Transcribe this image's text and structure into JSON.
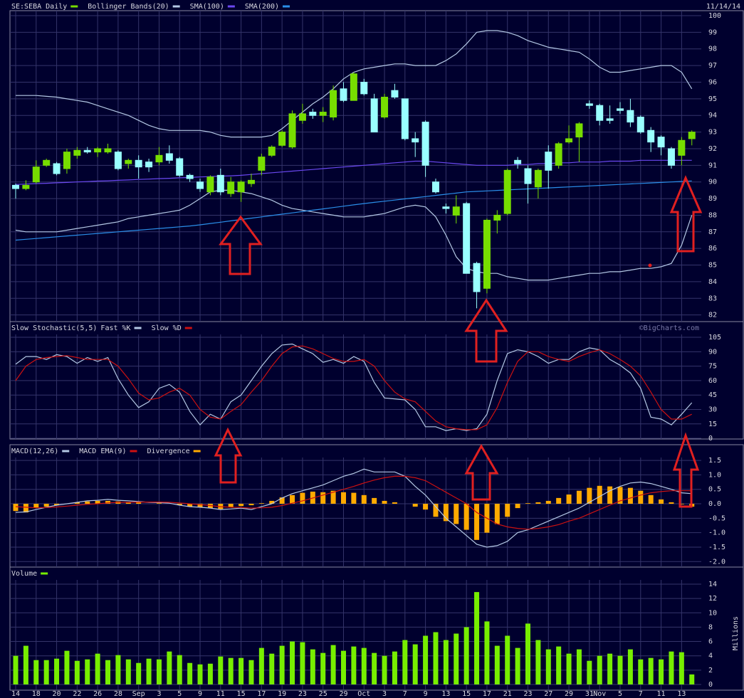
{
  "chart_data": [
    {
      "type": "candlestick",
      "title": "SE:SEBA Daily",
      "date": "11/14/14",
      "up_color": "#77dd00",
      "down_color": "#99ffff",
      "grid": true,
      "ylim": [
        81.6,
        100.3
      ],
      "yticks": [
        82,
        83,
        84,
        85,
        86,
        87,
        88,
        89,
        90,
        91,
        92,
        93,
        94,
        95,
        96,
        97,
        98,
        99,
        100
      ],
      "open": [
        89.8,
        89.6,
        90.0,
        91.0,
        91.1,
        90.8,
        91.6,
        91.9,
        91.8,
        91.8,
        91.8,
        91.1,
        91.3,
        91.2,
        91.2,
        91.7,
        91.4,
        90.4,
        90.0,
        89.4,
        90.4,
        89.3,
        89.4,
        89.9,
        90.7,
        91.6,
        92.2,
        92.1,
        93.7,
        94.2,
        94.0,
        93.9,
        95.6,
        94.9,
        96.0,
        95.0,
        93.9,
        95.5,
        95.0,
        92.6,
        93.6,
        90.0,
        88.5,
        88.0,
        88.7,
        85.1,
        83.6,
        87.7,
        88.1,
        91.3,
        90.8,
        89.7,
        91.8,
        91.0,
        92.4,
        92.7,
        94.7,
        94.6,
        93.8,
        94.4,
        94.3,
        93.9,
        93.1,
        92.7,
        92.0,
        91.6,
        92.6
      ],
      "high": [
        89.9,
        90.1,
        91.3,
        91.4,
        91.2,
        92.0,
        92.1,
        92.1,
        92.1,
        92.3,
        91.9,
        91.4,
        91.6,
        91.4,
        92.1,
        92.2,
        91.5,
        90.5,
        90.2,
        90.4,
        90.8,
        90.3,
        90.1,
        90.5,
        91.7,
        92.2,
        93.1,
        94.3,
        94.7,
        94.4,
        94.5,
        95.8,
        96.0,
        96.6,
        96.2,
        95.3,
        95.3,
        95.9,
        95.0,
        93.0,
        93.7,
        90.2,
        88.7,
        89.2,
        88.8,
        85.2,
        87.8,
        88.3,
        90.8,
        91.5,
        91.0,
        90.8,
        92.2,
        92.4,
        93.4,
        93.6,
        94.9,
        94.7,
        94.6,
        94.8,
        95.0,
        94.0,
        93.3,
        92.8,
        92.1,
        92.7,
        93.1
      ],
      "low": [
        89.0,
        89.5,
        89.9,
        90.9,
        90.4,
        90.5,
        91.4,
        91.7,
        91.5,
        91.7,
        90.7,
        90.8,
        90.2,
        90.6,
        91.0,
        91.1,
        90.3,
        90.0,
        89.4,
        89.2,
        89.2,
        89.1,
        88.8,
        89.7,
        90.4,
        91.5,
        92.1,
        92.0,
        93.5,
        93.8,
        93.6,
        93.7,
        94.8,
        94.9,
        95.2,
        93.0,
        93.8,
        95.0,
        92.5,
        91.5,
        90.3,
        89.3,
        88.1,
        87.5,
        84.5,
        82.4,
        83.3,
        86.9,
        88.0,
        90.8,
        88.7,
        89.0,
        89.6,
        90.8,
        92.3,
        91.2,
        94.4,
        93.4,
        93.5,
        94.1,
        93.3,
        92.9,
        91.8,
        91.6,
        90.8,
        91.0,
        92.2
      ],
      "close": [
        89.6,
        89.8,
        90.9,
        91.3,
        90.5,
        91.8,
        91.9,
        91.8,
        92.0,
        92.0,
        90.8,
        91.3,
        90.9,
        90.9,
        91.6,
        91.3,
        90.4,
        90.2,
        89.6,
        90.3,
        89.4,
        90.0,
        90.0,
        90.1,
        91.5,
        92.1,
        93.0,
        94.1,
        94.1,
        94.0,
        94.2,
        95.5,
        94.9,
        96.5,
        95.3,
        93.0,
        95.1,
        95.1,
        92.6,
        92.4,
        91.0,
        89.4,
        88.4,
        88.5,
        84.5,
        83.4,
        87.7,
        88.0,
        90.7,
        91.1,
        89.9,
        90.7,
        90.7,
        92.3,
        92.6,
        93.5,
        94.6,
        93.7,
        93.7,
        94.3,
        93.6,
        93.0,
        92.4,
        92.1,
        91.0,
        92.5,
        93.0
      ],
      "overlays": [
        {
          "name": "Bollinger Bands(20)",
          "color": "#b4c8e4",
          "upper": [
            95.2,
            95.2,
            95.2,
            95.15,
            95.1,
            95.0,
            94.9,
            94.8,
            94.6,
            94.4,
            94.2,
            94.0,
            93.7,
            93.4,
            93.2,
            93.1,
            93.1,
            93.1,
            93.1,
            93.0,
            92.8,
            92.7,
            92.7,
            92.7,
            92.7,
            92.8,
            93.2,
            93.7,
            94.2,
            94.7,
            95.1,
            95.6,
            96.2,
            96.6,
            96.8,
            96.9,
            97.0,
            97.1,
            97.1,
            97.0,
            97.0,
            97.0,
            97.3,
            97.7,
            98.3,
            99.0,
            99.1,
            99.1,
            99.0,
            98.8,
            98.5,
            98.3,
            98.1,
            98.0,
            97.9,
            97.8,
            97.4,
            96.9,
            96.6,
            96.6,
            96.7,
            96.8,
            96.9,
            97.0,
            97.0,
            96.6,
            95.6
          ],
          "lower": [
            87.1,
            87.0,
            87.0,
            87.0,
            87.0,
            87.1,
            87.2,
            87.3,
            87.4,
            87.5,
            87.6,
            87.8,
            87.9,
            88.0,
            88.1,
            88.2,
            88.3,
            88.6,
            89.0,
            89.4,
            89.5,
            89.5,
            89.4,
            89.3,
            89.1,
            88.9,
            88.6,
            88.4,
            88.3,
            88.2,
            88.1,
            88.0,
            87.9,
            87.9,
            87.9,
            88.0,
            88.1,
            88.3,
            88.5,
            88.6,
            88.5,
            87.9,
            86.8,
            85.5,
            84.8,
            84.6,
            84.5,
            84.5,
            84.3,
            84.2,
            84.1,
            84.1,
            84.1,
            84.2,
            84.3,
            84.4,
            84.5,
            84.5,
            84.6,
            84.6,
            84.7,
            84.8,
            84.8,
            84.9,
            85.1,
            86.2,
            88.0
          ]
        },
        {
          "name": "SMA(100)",
          "color": "#6a48f0",
          "values": [
            89.85,
            89.87,
            89.9,
            89.92,
            89.95,
            89.97,
            90.0,
            90.02,
            90.05,
            90.07,
            90.1,
            90.12,
            90.15,
            90.17,
            90.2,
            90.22,
            90.25,
            90.27,
            90.3,
            90.32,
            90.35,
            90.37,
            90.4,
            90.45,
            90.5,
            90.55,
            90.6,
            90.65,
            90.7,
            90.75,
            90.8,
            90.85,
            90.9,
            90.95,
            91.0,
            91.05,
            91.1,
            91.15,
            91.2,
            91.25,
            91.25,
            91.2,
            91.15,
            91.1,
            91.05,
            91.0,
            91.0,
            91.0,
            91.0,
            91.05,
            91.05,
            91.1,
            91.1,
            91.15,
            91.15,
            91.2,
            91.2,
            91.2,
            91.25,
            91.25,
            91.25,
            91.3,
            91.3,
            91.3,
            91.3,
            91.3,
            91.3
          ]
        },
        {
          "name": "SMA(200)",
          "color": "#2a8ee8",
          "values": [
            86.5,
            86.55,
            86.6,
            86.65,
            86.7,
            86.75,
            86.8,
            86.85,
            86.9,
            86.95,
            87.0,
            87.05,
            87.1,
            87.15,
            87.2,
            87.25,
            87.3,
            87.35,
            87.42,
            87.5,
            87.58,
            87.66,
            87.74,
            87.82,
            87.9,
            87.98,
            88.06,
            88.14,
            88.22,
            88.3,
            88.38,
            88.46,
            88.54,
            88.62,
            88.7,
            88.77,
            88.84,
            88.91,
            88.98,
            89.05,
            89.12,
            89.19,
            89.26,
            89.33,
            89.4,
            89.43,
            89.46,
            89.49,
            89.52,
            89.55,
            89.58,
            89.61,
            89.64,
            89.67,
            89.7,
            89.73,
            89.76,
            89.79,
            89.82,
            89.85,
            89.88,
            89.91,
            89.94,
            89.97,
            90.0,
            90.03,
            90.06
          ]
        }
      ]
    },
    {
      "type": "line",
      "title": "Slow Stochastic(5,5)",
      "credit": "©BigCharts.com",
      "grid": true,
      "ylim": [
        -0.7,
        108
      ],
      "yticks": [
        0,
        15,
        30,
        45,
        60,
        75,
        90,
        105
      ],
      "series": [
        {
          "name": "Fast %K",
          "color": "#b4c8e4",
          "values": [
            77,
            85,
            85,
            82,
            87,
            85,
            78,
            84,
            80,
            84,
            62,
            45,
            32,
            38,
            52,
            56,
            48,
            28,
            14,
            25,
            20,
            38,
            45,
            60,
            75,
            88,
            97,
            98,
            93,
            88,
            79,
            82,
            78,
            85,
            80,
            58,
            42,
            41,
            40,
            30,
            12,
            12,
            8,
            10,
            8,
            10,
            25,
            60,
            88,
            92,
            90,
            85,
            78,
            82,
            82,
            90,
            94,
            92,
            82,
            76,
            68,
            52,
            22,
            20,
            14,
            25,
            37
          ]
        },
        {
          "name": "Slow %D",
          "color": "#cc1111",
          "values": [
            60,
            75,
            82,
            84,
            85,
            86,
            84,
            82,
            82,
            82,
            75,
            62,
            47,
            40,
            42,
            48,
            52,
            45,
            30,
            22,
            20,
            28,
            35,
            48,
            60,
            75,
            88,
            95,
            96,
            93,
            88,
            83,
            80,
            80,
            82,
            75,
            60,
            48,
            41,
            38,
            28,
            18,
            12,
            10,
            9,
            9,
            14,
            32,
            58,
            80,
            90,
            90,
            85,
            82,
            80,
            85,
            89,
            92,
            88,
            82,
            75,
            65,
            48,
            30,
            20,
            20,
            25
          ]
        }
      ]
    },
    {
      "type": "macd",
      "grid": true,
      "ylim": [
        -2.19,
        1.6
      ],
      "yticks": [
        1.5,
        {
          "value": 1,
          "label": "1.0"
        },
        0.5,
        {
          "value": 0,
          "label": "0.0"
        },
        -0.5,
        {
          "value": -1,
          "label": "-1.0"
        },
        -1.5,
        {
          "value": -2,
          "label": "-2.0"
        }
      ],
      "series": [
        {
          "name": "MACD(12,26)",
          "color": "#b4c8e4",
          "kind": "line",
          "values": [
            -0.3,
            -0.28,
            -0.2,
            -0.12,
            -0.05,
            0.0,
            0.05,
            0.1,
            0.12,
            0.15,
            0.12,
            0.1,
            0.08,
            0.05,
            0.04,
            0.02,
            -0.05,
            -0.1,
            -0.12,
            -0.15,
            -0.2,
            -0.18,
            -0.15,
            -0.2,
            -0.1,
            0.0,
            0.2,
            0.35,
            0.45,
            0.55,
            0.65,
            0.8,
            0.95,
            1.05,
            1.2,
            1.1,
            1.1,
            1.1,
            0.95,
            0.6,
            0.3,
            -0.1,
            -0.5,
            -0.8,
            -1.1,
            -1.4,
            -1.5,
            -1.45,
            -1.3,
            -1.0,
            -0.9,
            -0.75,
            -0.6,
            -0.45,
            -0.3,
            -0.15,
            0.05,
            0.25,
            0.45,
            0.6,
            0.72,
            0.75,
            0.7,
            0.6,
            0.5,
            0.38,
            0.35
          ]
        },
        {
          "name": "MACD EMA(9)",
          "color": "#cc1111",
          "kind": "line",
          "values": [
            -0.1,
            -0.12,
            -0.14,
            -0.13,
            -0.11,
            -0.08,
            -0.05,
            -0.02,
            0.0,
            0.03,
            0.05,
            0.05,
            0.06,
            0.06,
            0.06,
            0.05,
            0.03,
            0.0,
            -0.03,
            -0.06,
            -0.1,
            -0.12,
            -0.13,
            -0.15,
            -0.14,
            -0.12,
            -0.06,
            0.02,
            0.1,
            0.2,
            0.3,
            0.4,
            0.5,
            0.6,
            0.72,
            0.82,
            0.9,
            0.95,
            0.95,
            0.9,
            0.8,
            0.6,
            0.4,
            0.2,
            0.0,
            -0.3,
            -0.5,
            -0.7,
            -0.8,
            -0.85,
            -0.88,
            -0.85,
            -0.8,
            -0.72,
            -0.6,
            -0.5,
            -0.35,
            -0.2,
            -0.05,
            0.1,
            0.2,
            0.3,
            0.38,
            0.42,
            0.45,
            0.45,
            0.45
          ]
        },
        {
          "name": "Divergence",
          "color": "#ffaa00",
          "kind": "bar",
          "values": [
            -0.25,
            -0.3,
            -0.15,
            -0.1,
            -0.05,
            0,
            0.05,
            0.08,
            0.1,
            0.1,
            0.08,
            0.06,
            0.05,
            0,
            0.02,
            0,
            -0.05,
            -0.1,
            -0.12,
            -0.15,
            -0.18,
            -0.12,
            -0.08,
            -0.05,
            0.02,
            0.1,
            0.22,
            0.3,
            0.38,
            0.42,
            0.4,
            0.45,
            0.4,
            0.38,
            0.3,
            0.2,
            0.1,
            0.05,
            0,
            -0.1,
            -0.2,
            -0.45,
            -0.6,
            -0.7,
            -0.9,
            -1.25,
            -1.0,
            -0.7,
            -0.45,
            -0.15,
            0.02,
            0.05,
            0.1,
            0.2,
            0.32,
            0.45,
            0.55,
            0.62,
            0.6,
            0.58,
            0.55,
            0.45,
            0.3,
            0.15,
            0.05,
            -0.02,
            -0.1
          ]
        }
      ]
    },
    {
      "type": "bar",
      "title": "Volume",
      "color": "#77ee00",
      "y_label": "Millions",
      "grid": true,
      "ylim": [
        -0.8,
        14.6
      ],
      "yticks": [
        0,
        2,
        4,
        6,
        8,
        10,
        12,
        14
      ],
      "categories": [
        "14",
        null,
        "18",
        null,
        "20",
        null,
        "22",
        null,
        "26",
        null,
        "28",
        null,
        "Sep",
        null,
        "3",
        null,
        "5",
        null,
        "9",
        null,
        "11",
        null,
        "15",
        null,
        "17",
        null,
        "19",
        null,
        "23",
        null,
        "25",
        null,
        "29",
        null,
        "Oct",
        null,
        "3",
        null,
        "7",
        null,
        "9",
        null,
        "13",
        null,
        "15",
        null,
        "17",
        null,
        "21",
        null,
        "23",
        null,
        "27",
        null,
        "29",
        null,
        "31",
        "Nov",
        null,
        "5",
        null,
        "7",
        null,
        "11",
        null,
        "13",
        null
      ],
      "values": [
        4.0,
        5.4,
        3.4,
        3.4,
        3.6,
        4.7,
        3.3,
        3.5,
        4.3,
        3.4,
        4.1,
        3.5,
        3.0,
        3.6,
        3.5,
        4.6,
        4.1,
        3.0,
        2.8,
        2.9,
        3.9,
        3.7,
        3.7,
        3.4,
        5.1,
        4.3,
        5.4,
        6.0,
        5.9,
        4.9,
        4.4,
        5.5,
        4.7,
        5.3,
        5.1,
        4.4,
        4.0,
        4.6,
        6.2,
        5.6,
        6.8,
        7.3,
        6.2,
        7.1,
        8.0,
        12.9,
        8.8,
        5.4,
        6.8,
        5.1,
        8.5,
        6.2,
        4.9,
        5.3,
        4.3,
        4.9,
        3.3,
        4.0,
        4.3,
        4.0,
        4.9,
        3.5,
        3.7,
        3.5,
        4.6,
        4.5,
        1.4
      ]
    }
  ]
}
